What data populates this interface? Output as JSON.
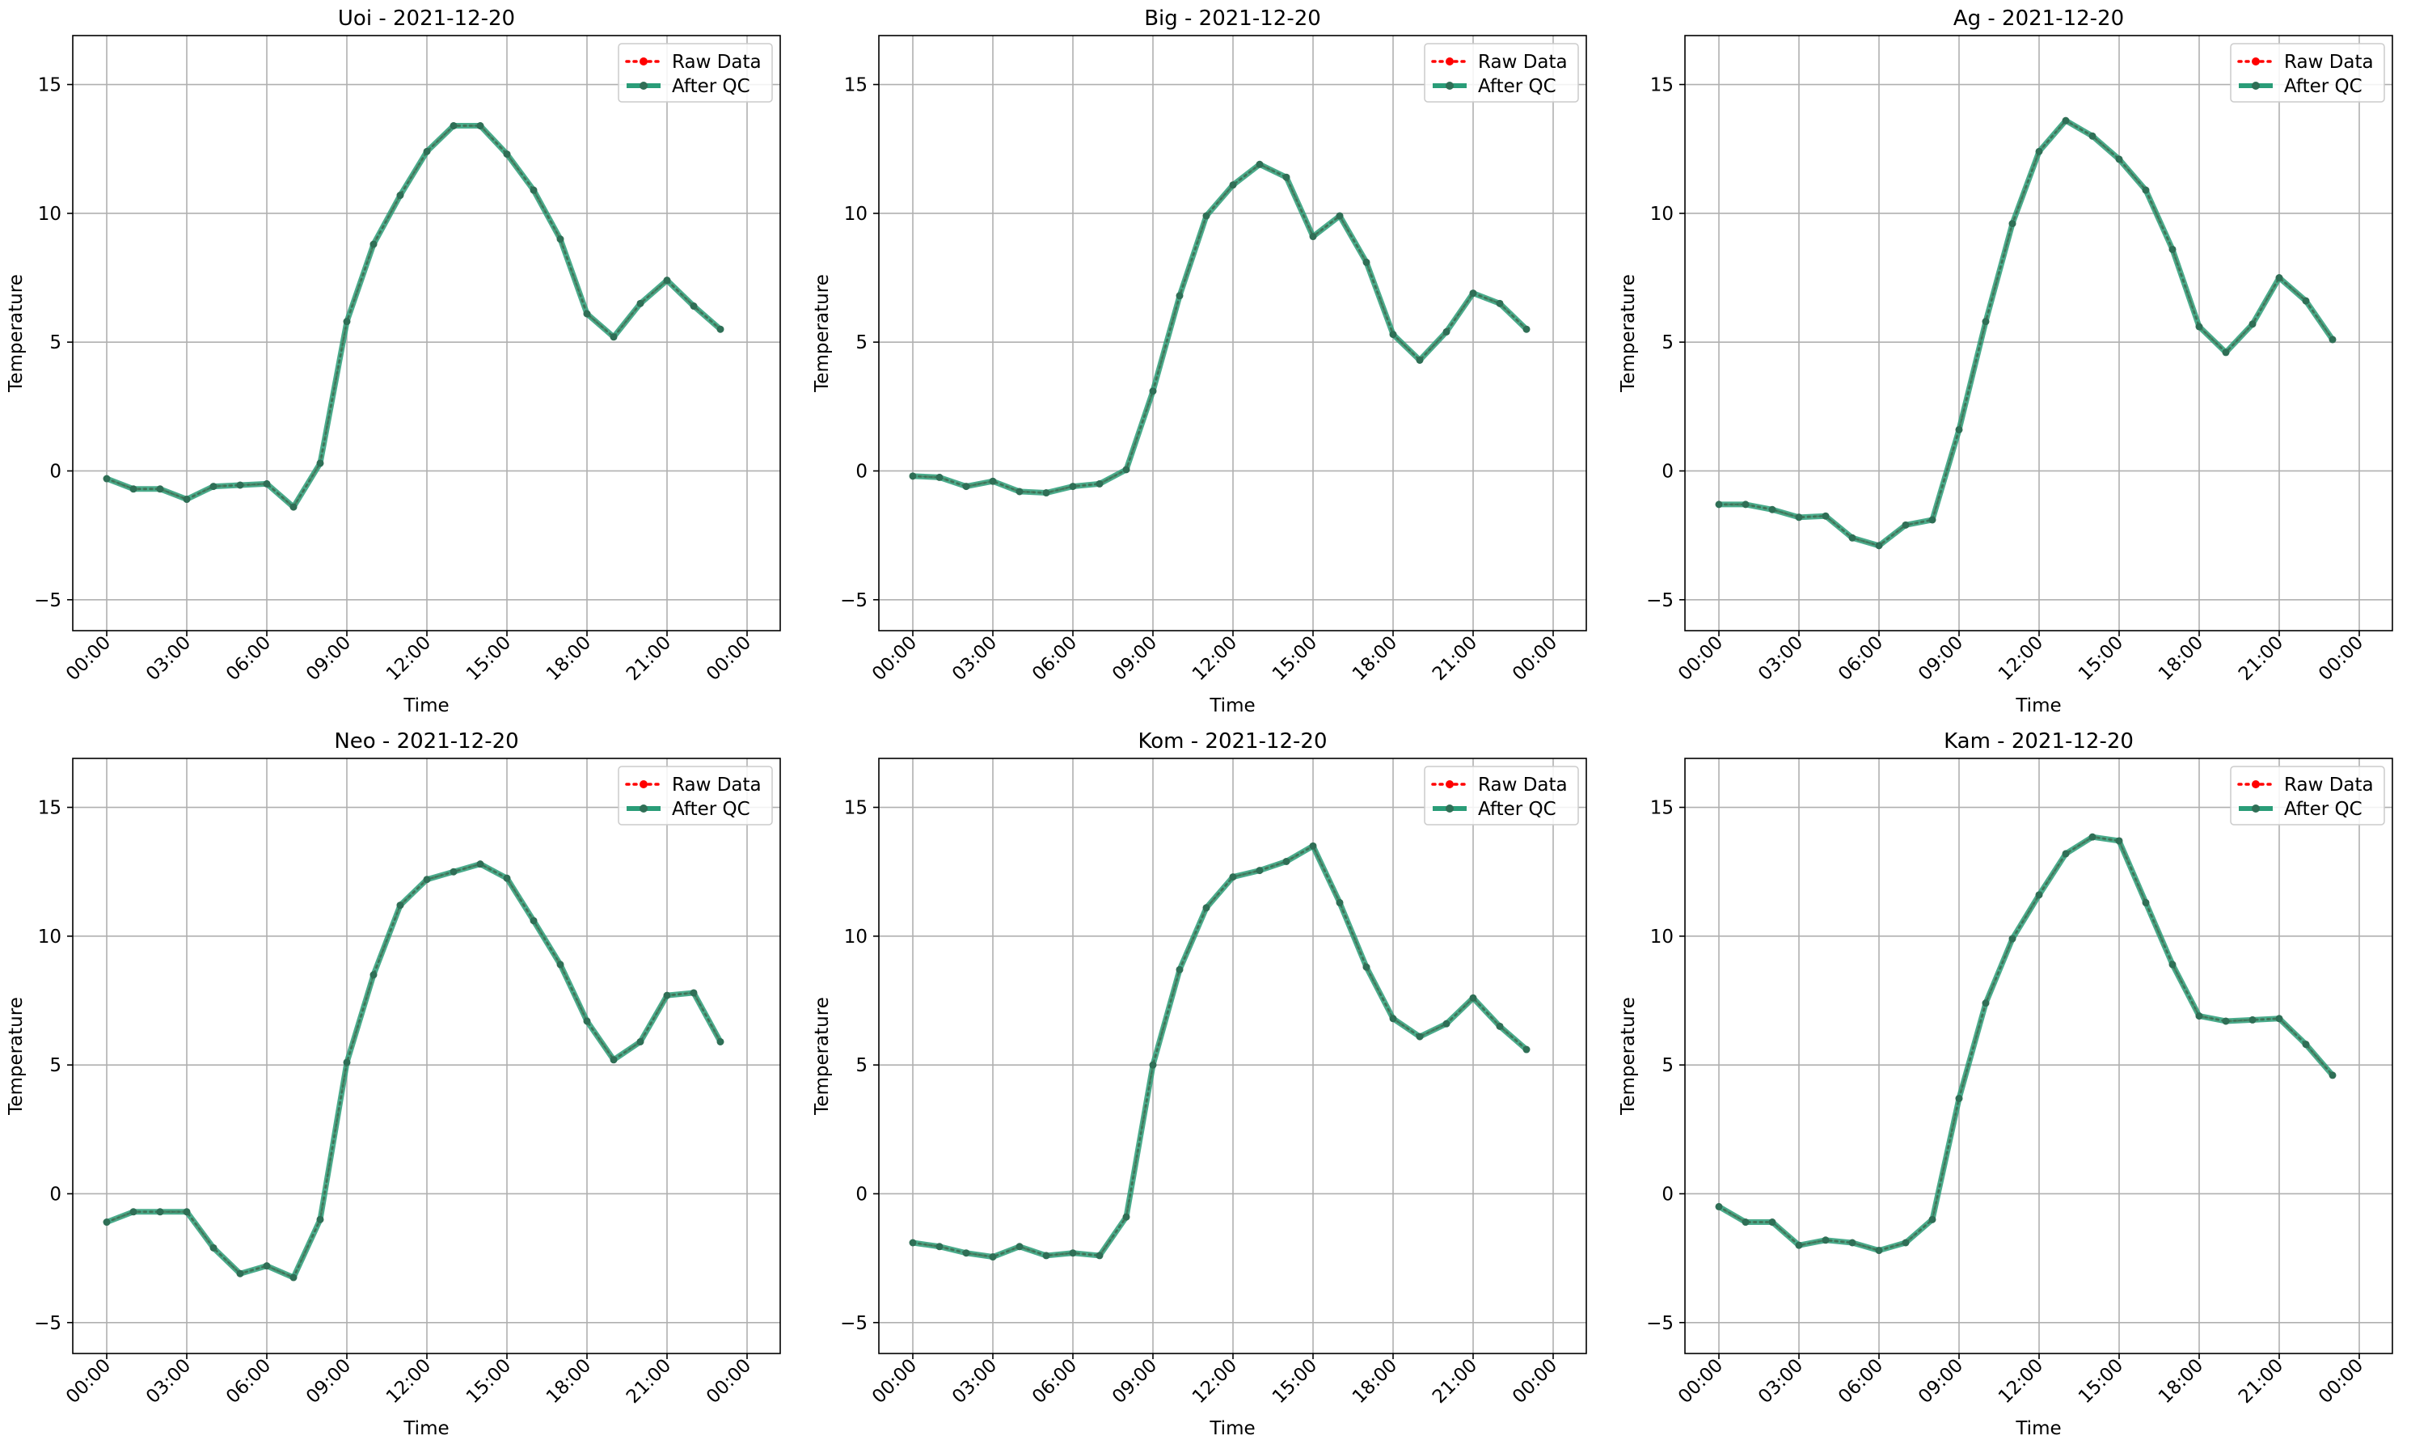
{
  "chart_data": [
    {
      "type": "line",
      "title": "Uoi - 2021-12-20",
      "xlabel": "Time",
      "ylabel": "Temperature",
      "x_hours": [
        0,
        1,
        2,
        3,
        4,
        5,
        6,
        7,
        8,
        9,
        10,
        11,
        12,
        13,
        14,
        15,
        16,
        17,
        18,
        19,
        20,
        21,
        22,
        23
      ],
      "x_tick_labels": [
        "00:00",
        "03:00",
        "06:00",
        "09:00",
        "12:00",
        "15:00",
        "18:00",
        "21:00",
        "00:00"
      ],
      "y_ticks": [
        -5,
        0,
        5,
        10,
        15
      ],
      "ylim": [
        -6.2,
        16.9
      ],
      "grid": true,
      "legend_position": "upper right",
      "series": [
        {
          "name": "Raw Data",
          "values": [
            -0.3,
            -0.7,
            -0.7,
            -1.1,
            -0.6,
            -0.55,
            -0.5,
            -1.4,
            0.3,
            5.8,
            8.8,
            10.7,
            12.4,
            13.4,
            13.4,
            12.3,
            10.9,
            9.0,
            6.1,
            5.2,
            6.5,
            7.4,
            6.4,
            5.5
          ]
        },
        {
          "name": "After QC",
          "values": [
            -0.3,
            -0.7,
            -0.7,
            -1.1,
            -0.6,
            -0.55,
            -0.5,
            -1.4,
            0.3,
            5.8,
            8.8,
            10.7,
            12.4,
            13.4,
            13.4,
            12.3,
            10.9,
            9.0,
            6.1,
            5.2,
            6.5,
            7.4,
            6.4,
            5.5
          ]
        }
      ]
    },
    {
      "type": "line",
      "title": "Big - 2021-12-20",
      "xlabel": "Time",
      "ylabel": "Temperature",
      "x_hours": [
        0,
        1,
        2,
        3,
        4,
        5,
        6,
        7,
        8,
        9,
        10,
        11,
        12,
        13,
        14,
        15,
        16,
        17,
        18,
        19,
        20,
        21,
        22,
        23
      ],
      "x_tick_labels": [
        "00:00",
        "03:00",
        "06:00",
        "09:00",
        "12:00",
        "15:00",
        "18:00",
        "21:00",
        "00:00"
      ],
      "y_ticks": [
        -5,
        0,
        5,
        10,
        15
      ],
      "ylim": [
        -6.2,
        16.9
      ],
      "grid": true,
      "legend_position": "upper right",
      "series": [
        {
          "name": "Raw Data",
          "values": [
            -0.2,
            -0.25,
            -0.6,
            -0.4,
            -0.8,
            -0.85,
            -0.6,
            -0.5,
            0.05,
            3.1,
            6.8,
            9.9,
            11.1,
            11.9,
            11.4,
            9.1,
            9.9,
            8.1,
            5.3,
            4.3,
            5.4,
            6.9,
            6.5,
            5.5
          ]
        },
        {
          "name": "After QC",
          "values": [
            -0.2,
            -0.25,
            -0.6,
            -0.4,
            -0.8,
            -0.85,
            -0.6,
            -0.5,
            0.05,
            3.1,
            6.8,
            9.9,
            11.1,
            11.9,
            11.4,
            9.1,
            9.9,
            8.1,
            5.3,
            4.3,
            5.4,
            6.9,
            6.5,
            5.5
          ]
        }
      ]
    },
    {
      "type": "line",
      "title": "Ag - 2021-12-20",
      "xlabel": "Time",
      "ylabel": "Temperature",
      "x_hours": [
        0,
        1,
        2,
        3,
        4,
        5,
        6,
        7,
        8,
        9,
        10,
        11,
        12,
        13,
        14,
        15,
        16,
        17,
        18,
        19,
        20,
        21,
        22,
        23
      ],
      "x_tick_labels": [
        "00:00",
        "03:00",
        "06:00",
        "09:00",
        "12:00",
        "15:00",
        "18:00",
        "21:00",
        "00:00"
      ],
      "y_ticks": [
        -5,
        0,
        5,
        10,
        15
      ],
      "ylim": [
        -6.2,
        16.9
      ],
      "grid": true,
      "legend_position": "upper right",
      "series": [
        {
          "name": "Raw Data",
          "values": [
            -1.3,
            -1.3,
            -1.5,
            -1.8,
            -1.75,
            -2.6,
            -2.9,
            -2.1,
            -1.9,
            1.6,
            5.8,
            9.6,
            12.4,
            13.6,
            13.0,
            12.1,
            10.9,
            8.6,
            5.6,
            4.6,
            5.7,
            7.5,
            6.6,
            5.1
          ]
        },
        {
          "name": "After QC",
          "values": [
            -1.3,
            -1.3,
            -1.5,
            -1.8,
            -1.75,
            -2.6,
            -2.9,
            -2.1,
            -1.9,
            1.6,
            5.8,
            9.6,
            12.4,
            13.6,
            13.0,
            12.1,
            10.9,
            8.6,
            5.6,
            4.6,
            5.7,
            7.5,
            6.6,
            5.1
          ]
        }
      ]
    },
    {
      "type": "line",
      "title": "Neo - 2021-12-20",
      "xlabel": "Time",
      "ylabel": "Temperature",
      "x_hours": [
        0,
        1,
        2,
        3,
        4,
        5,
        6,
        7,
        8,
        9,
        10,
        11,
        12,
        13,
        14,
        15,
        16,
        17,
        18,
        19,
        20,
        21,
        22,
        23
      ],
      "x_tick_labels": [
        "00:00",
        "03:00",
        "06:00",
        "09:00",
        "12:00",
        "15:00",
        "18:00",
        "21:00",
        "00:00"
      ],
      "y_ticks": [
        -5,
        0,
        5,
        10,
        15
      ],
      "ylim": [
        -6.2,
        16.9
      ],
      "grid": true,
      "legend_position": "upper right",
      "series": [
        {
          "name": "Raw Data",
          "values": [
            -1.1,
            -0.7,
            -0.7,
            -0.7,
            -2.1,
            -3.1,
            -2.8,
            -3.25,
            -1.0,
            5.1,
            8.5,
            11.2,
            12.2,
            12.5,
            12.8,
            12.25,
            10.6,
            8.9,
            6.7,
            5.2,
            5.9,
            7.7,
            7.8,
            5.9
          ]
        },
        {
          "name": "After QC",
          "values": [
            -1.1,
            -0.7,
            -0.7,
            -0.7,
            -2.1,
            -3.1,
            -2.8,
            -3.25,
            -1.0,
            5.1,
            8.5,
            11.2,
            12.2,
            12.5,
            12.8,
            12.25,
            10.6,
            8.9,
            6.7,
            5.2,
            5.9,
            7.7,
            7.8,
            5.9
          ]
        }
      ]
    },
    {
      "type": "line",
      "title": "Kom - 2021-12-20",
      "xlabel": "Time",
      "ylabel": "Temperature",
      "x_hours": [
        0,
        1,
        2,
        3,
        4,
        5,
        6,
        7,
        8,
        9,
        10,
        11,
        12,
        13,
        14,
        15,
        16,
        17,
        18,
        19,
        20,
        21,
        22,
        23
      ],
      "x_tick_labels": [
        "00:00",
        "03:00",
        "06:00",
        "09:00",
        "12:00",
        "15:00",
        "18:00",
        "21:00",
        "00:00"
      ],
      "y_ticks": [
        -5,
        0,
        5,
        10,
        15
      ],
      "ylim": [
        -6.2,
        16.9
      ],
      "grid": true,
      "legend_position": "upper right",
      "series": [
        {
          "name": "Raw Data",
          "values": [
            -1.9,
            -2.05,
            -2.3,
            -2.45,
            -2.05,
            -2.4,
            -2.3,
            -2.4,
            -0.9,
            5.0,
            8.7,
            11.1,
            12.3,
            12.55,
            12.9,
            13.5,
            11.3,
            8.8,
            6.8,
            6.1,
            6.6,
            7.6,
            6.5,
            5.6
          ]
        },
        {
          "name": "After QC",
          "values": [
            -1.9,
            -2.05,
            -2.3,
            -2.45,
            -2.05,
            -2.4,
            -2.3,
            -2.4,
            -0.9,
            5.0,
            8.7,
            11.1,
            12.3,
            12.55,
            12.9,
            13.5,
            11.3,
            8.8,
            6.8,
            6.1,
            6.6,
            7.6,
            6.5,
            5.6
          ]
        }
      ]
    },
    {
      "type": "line",
      "title": "Kam - 2021-12-20",
      "xlabel": "Time",
      "ylabel": "Temperature",
      "x_hours": [
        0,
        1,
        2,
        3,
        4,
        5,
        6,
        7,
        8,
        9,
        10,
        11,
        12,
        13,
        14,
        15,
        16,
        17,
        18,
        19,
        20,
        21,
        22,
        23
      ],
      "x_tick_labels": [
        "00:00",
        "03:00",
        "06:00",
        "09:00",
        "12:00",
        "15:00",
        "18:00",
        "21:00",
        "00:00"
      ],
      "y_ticks": [
        -5,
        0,
        5,
        10,
        15
      ],
      "ylim": [
        -6.2,
        16.9
      ],
      "grid": true,
      "legend_position": "upper right",
      "series": [
        {
          "name": "Raw Data",
          "values": [
            -0.5,
            -1.1,
            -1.1,
            -2.0,
            -1.8,
            -1.9,
            -2.2,
            -1.9,
            -1.0,
            3.7,
            7.4,
            9.9,
            11.6,
            13.2,
            13.85,
            13.7,
            11.3,
            8.9,
            6.9,
            6.7,
            6.75,
            6.8,
            5.8,
            4.6
          ]
        },
        {
          "name": "After QC",
          "values": [
            -0.5,
            -1.1,
            -1.1,
            -2.0,
            -1.8,
            -1.9,
            -2.2,
            -1.9,
            -1.0,
            3.7,
            7.4,
            9.9,
            11.6,
            13.2,
            13.85,
            13.7,
            11.3,
            8.9,
            6.9,
            6.7,
            6.75,
            6.8,
            5.8,
            4.6
          ]
        }
      ]
    }
  ],
  "colors": {
    "raw": "#ff0000",
    "after_qc": "#2a9d78",
    "grid": "#b0b0b0",
    "axis": "#000000"
  }
}
